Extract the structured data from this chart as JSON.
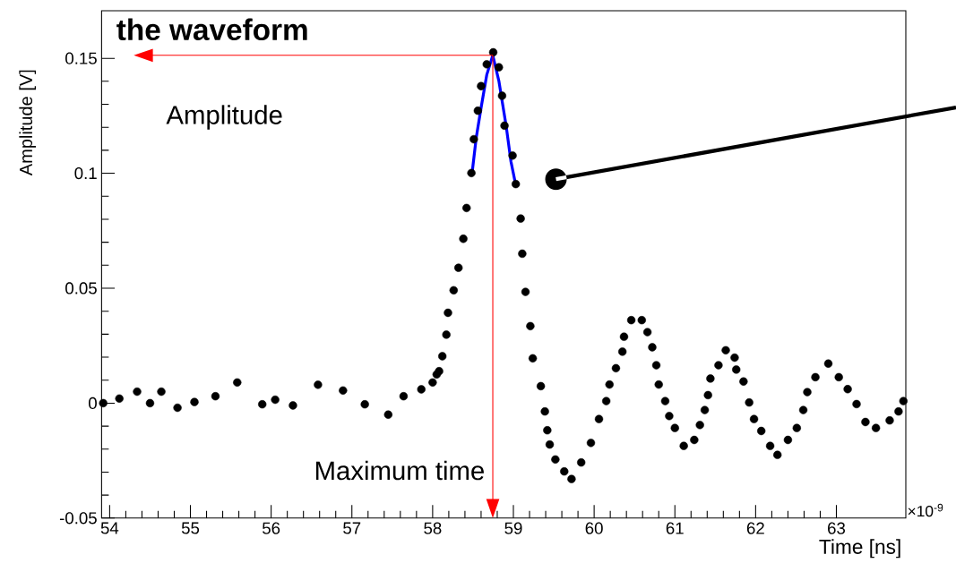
{
  "chart_data": {
    "type": "scatter",
    "title": "the waveform",
    "xlabel": "Time [ns]",
    "ylabel": "Amplitude [V]",
    "xlim": [
      53.9,
      63.86
    ],
    "ylim": [
      -0.05,
      0.1707
    ],
    "xticks": [
      54,
      55,
      56,
      57,
      58,
      59,
      60,
      61,
      62,
      63
    ],
    "yticks": [
      -0.05,
      0,
      0.05,
      0.1,
      0.15
    ],
    "series": [
      {
        "marker": "circle",
        "color": "#000000",
        "x": [
          53.92,
          54.12,
          54.34,
          54.5,
          54.64,
          54.84,
          55.05,
          55.31,
          55.58,
          55.89,
          56.05,
          56.27,
          56.58,
          56.89,
          57.16,
          57.45,
          57.64,
          57.86,
          58.0,
          58.05,
          58.08,
          58.12,
          58.17,
          58.19,
          58.26,
          58.32,
          58.38,
          58.42,
          58.48,
          58.51,
          58.56,
          58.6,
          58.67,
          58.75,
          58.82,
          58.86,
          58.89,
          58.99,
          59.03,
          59.09,
          59.11,
          59.15,
          59.21,
          59.24,
          59.34,
          59.39,
          59.42,
          59.45,
          59.52,
          59.63,
          59.72,
          59.84,
          59.96,
          60.06,
          60.15,
          60.19,
          60.27,
          60.35,
          60.37,
          60.46,
          60.59,
          60.66,
          60.72,
          60.77,
          60.8,
          60.88,
          60.93,
          61.0,
          61.11,
          61.24,
          61.31,
          61.37,
          61.41,
          61.44,
          61.54,
          61.63,
          61.74,
          61.76,
          61.85,
          61.92,
          61.98,
          62.07,
          62.18,
          62.27,
          62.4,
          62.51,
          62.59,
          62.64,
          62.74,
          62.9,
          63.03,
          63.14,
          63.25,
          63.36,
          63.49,
          63.66,
          63.77,
          63.83
        ],
        "values": [
          0.0,
          0.002,
          0.005,
          0.0,
          0.005,
          -0.002,
          0.0005,
          0.003,
          0.009,
          -0.0005,
          0.0015,
          -0.001,
          0.008,
          0.0055,
          -0.0005,
          -0.005,
          0.003,
          0.006,
          0.009,
          0.0125,
          0.0139,
          0.0204,
          0.0298,
          0.0393,
          0.0491,
          0.0589,
          0.0715,
          0.0849,
          0.1001,
          0.1148,
          0.1272,
          0.1379,
          0.1474,
          0.1526,
          0.1461,
          0.1337,
          0.1207,
          0.1077,
          0.0953,
          0.0803,
          0.065,
          0.0484,
          0.0335,
          0.0195,
          0.0074,
          -0.0036,
          -0.0118,
          -0.018,
          -0.0245,
          -0.0297,
          -0.033,
          -0.0258,
          -0.0173,
          -0.0069,
          0.0009,
          0.0081,
          0.0152,
          0.0224,
          0.0289,
          0.0361,
          0.0361,
          0.0309,
          0.0243,
          0.0165,
          0.0081,
          0.0009,
          -0.0056,
          -0.0108,
          -0.0186,
          -0.016,
          -0.0095,
          -0.003,
          0.0035,
          0.0107,
          0.0165,
          0.023,
          0.0198,
          0.0146,
          0.0094,
          0.0003,
          -0.0069,
          -0.0121,
          -0.0186,
          -0.0225,
          -0.016,
          -0.0108,
          -0.003,
          0.0048,
          0.0113,
          0.0172,
          0.0113,
          0.0061,
          -0.0004,
          -0.0082,
          -0.0108,
          -0.0075,
          -0.0036,
          0.0009
        ]
      },
      {
        "type": "line",
        "marker": "none",
        "color": "#0000ff",
        "x": [
          58.49,
          58.54,
          58.6,
          58.67,
          58.745,
          58.82,
          58.91,
          58.97,
          59.03
        ],
        "values": [
          0.1005,
          0.1155,
          0.1285,
          0.1428,
          0.1513,
          0.1402,
          0.1207,
          0.1051,
          0.0947
        ]
      }
    ],
    "ref_lines": [
      {
        "axis": "y",
        "value": 0.1513,
        "label": "Amplitude",
        "color": "#ff0000"
      },
      {
        "axis": "x",
        "value": 58.745,
        "label": "Maximum time",
        "color": "#ff0000"
      }
    ],
    "annotations": [
      "×10$^{-9}$"
    ]
  }
}
